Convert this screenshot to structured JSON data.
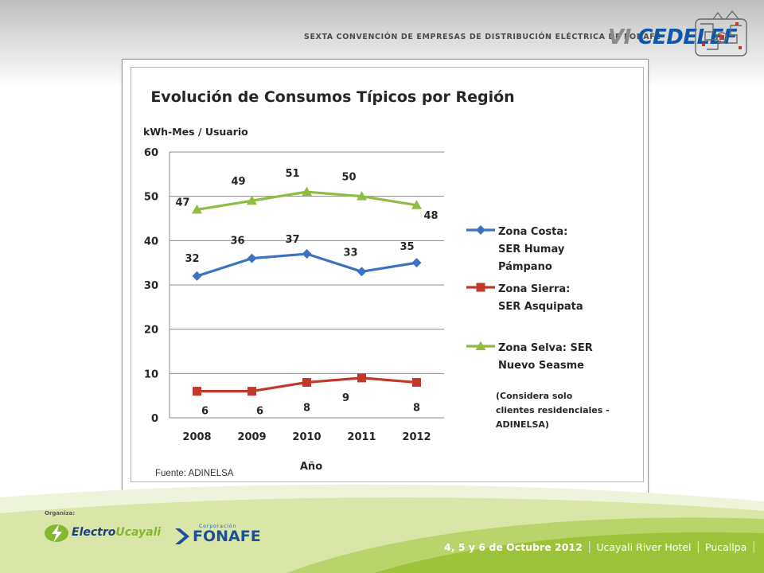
{
  "header": {
    "convention": "SEXTA CONVENCIÓN DE EMPRESAS DE DISTRIBUCIÓN ELÉCTRICA DE FONAFE",
    "brand_prefix": "VI",
    "brand_name": "CEDELEF"
  },
  "chart_data": {
    "type": "line",
    "title": "Evolución de Consumos Típicos por Región",
    "ylabel": "kWh-Mes / Usuario",
    "xlabel": "Año",
    "categories": [
      "2008",
      "2009",
      "2010",
      "2011",
      "2012"
    ],
    "ylim": [
      0,
      60
    ],
    "yticks": [
      0,
      10,
      20,
      30,
      40,
      50,
      60
    ],
    "grid": true,
    "legend_position": "right",
    "series": [
      {
        "name_lines": [
          "Zona Costa:",
          "SER Humay",
          "Pámpano"
        ],
        "values": [
          32,
          36,
          37,
          33,
          35
        ],
        "labels": [
          "32",
          "36",
          "37",
          "33",
          "35"
        ],
        "color": "#3d72c0",
        "marker": "diamond"
      },
      {
        "name_lines": [
          "Zona Sierra:",
          "SER Asquipata"
        ],
        "values": [
          6,
          6,
          8,
          9,
          8
        ],
        "labels": [
          "6",
          "6",
          "8",
          "9",
          "8"
        ],
        "color": "#c0392b",
        "marker": "square"
      },
      {
        "name_lines": [
          "Zona Selva: SER",
          "Nuevo Seasme"
        ],
        "values": [
          47,
          49,
          51,
          50,
          48
        ],
        "labels": [
          "47",
          "49",
          "51",
          "50",
          "48"
        ],
        "color": "#8ebd44",
        "marker": "triangle"
      }
    ],
    "note_lines": [
      "(Considera solo",
      "clientes residenciales -",
      "ADINELSA)"
    ],
    "source": "Fuente: ADINELSA"
  },
  "footer": {
    "organiza": "Organiza:",
    "logo1_main": "Electro",
    "logo1_accent": "Ucayali",
    "logo2_corp": "Corporación",
    "logo2_name": "FONAFE",
    "date": "4, 5 y 6 de Octubre 2012",
    "venue": "Ucayali River Hotel",
    "city": "Pucallpa",
    "colors": {
      "green_band": "#9dc33b",
      "light_band": "#d9e6a8"
    }
  }
}
